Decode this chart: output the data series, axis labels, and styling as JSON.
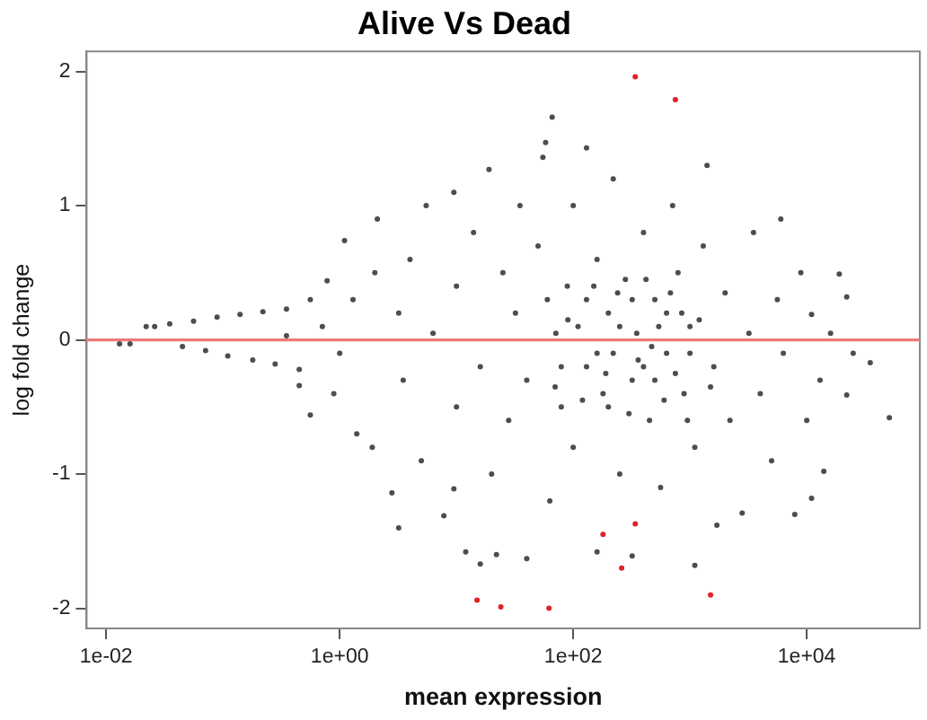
{
  "chart_data": {
    "type": "scatter",
    "title": "Alive Vs Dead",
    "xlabel": "mean expression",
    "ylabel": "log fold change",
    "log": "x",
    "marker": "circle",
    "xlim": [
      0.0068,
      93000
    ],
    "xticks": [
      {
        "value": 0.01,
        "label": "1e-02"
      },
      {
        "value": 1,
        "label": "1e+00"
      },
      {
        "value": 100,
        "label": "1e+02"
      },
      {
        "value": 10000,
        "label": "1e+04"
      }
    ],
    "ylim": [
      -2.15,
      2.15
    ],
    "yticks": [
      -2,
      -1,
      0,
      1,
      2
    ],
    "ref_lines": [
      {
        "axis": "y",
        "value": 0,
        "color": "#f07878"
      }
    ],
    "series": [
      {
        "color": "#4d4d4d",
        "x": [
          0.013,
          0.016,
          0.022,
          0.026,
          0.035,
          0.045,
          0.056,
          0.071,
          0.089,
          0.11,
          0.14,
          0.18,
          0.22,
          0.28,
          0.35,
          0.35,
          0.45,
          0.45,
          0.56,
          0.56,
          0.71,
          0.78,
          0.89,
          1.1,
          1,
          1.3,
          1.4,
          1.9,
          2,
          2.1,
          2.8,
          3.2,
          3.2,
          3.5,
          4,
          5,
          5.5,
          6.3,
          7.8,
          9.5,
          9.5,
          10,
          10,
          12,
          14,
          16,
          16,
          19,
          20,
          22,
          25,
          28,
          32,
          35,
          40,
          40,
          50,
          55,
          58,
          63,
          66,
          71,
          79,
          89,
          100,
          100,
          110,
          130,
          130,
          160,
          160,
          180,
          200,
          220,
          220,
          250,
          280,
          320,
          320,
          350,
          400,
          450,
          500,
          560,
          630,
          710,
          790,
          890,
          1000,
          1100,
          1100,
          1300,
          1400,
          1600,
          1700,
          2000,
          2200,
          2800,
          3200,
          3500,
          4000,
          5000,
          5600,
          6000,
          6300,
          7900,
          8900,
          10000,
          11000,
          11000,
          13000,
          14000,
          16000,
          19000,
          22000,
          22000,
          25000,
          35000,
          51000,
          160,
          250,
          400,
          320,
          200,
          500,
          630,
          130,
          79,
          1000,
          70,
          90,
          120,
          150,
          190,
          240,
          300,
          360,
          420,
          470,
          540,
          600,
          680,
          750,
          850,
          950,
          1200,
          1500,
          60
        ],
        "values": [
          -0.03,
          -0.03,
          0.1,
          0.1,
          0.12,
          -0.05,
          0.14,
          -0.08,
          0.17,
          -0.12,
          0.19,
          -0.15,
          0.21,
          -0.18,
          0.23,
          0.03,
          -0.22,
          -0.34,
          0.3,
          -0.56,
          0.1,
          0.44,
          -0.4,
          0.74,
          -0.1,
          0.3,
          -0.7,
          -0.8,
          0.5,
          0.9,
          -1.14,
          -1.4,
          0.2,
          -0.3,
          0.6,
          -0.9,
          1,
          0.05,
          -1.31,
          -1.11,
          1.1,
          0.4,
          -0.5,
          -1.58,
          0.8,
          -1.67,
          -0.2,
          1.27,
          -1,
          -1.6,
          0.5,
          -0.6,
          0.2,
          1,
          -1.63,
          -0.3,
          0.7,
          1.36,
          1.47,
          -1.2,
          1.66,
          0.05,
          -0.5,
          0.4,
          -0.8,
          1,
          0.1,
          1.43,
          -0.2,
          -1.58,
          0.6,
          -0.4,
          0.2,
          -0.1,
          1.2,
          -1,
          0.45,
          -1.61,
          -0.3,
          0.05,
          0.8,
          -0.6,
          0.3,
          -1.1,
          -0.1,
          1,
          0.5,
          -0.4,
          0.1,
          -1.68,
          -0.8,
          0.7,
          1.3,
          -0.2,
          -1.38,
          0.35,
          -0.6,
          -1.29,
          0.05,
          0.8,
          -0.4,
          -0.9,
          0.3,
          0.9,
          -0.1,
          -1.3,
          0.5,
          -0.6,
          0.19,
          -1.18,
          -0.3,
          -0.98,
          0.05,
          0.49,
          0.32,
          -0.41,
          -0.1,
          -0.17,
          -0.58,
          -0.1,
          0.1,
          -0.2,
          0.3,
          -0.5,
          -0.3,
          0.2,
          0.3,
          -0.2,
          -0.1,
          -0.35,
          0.15,
          -0.45,
          0.4,
          -0.25,
          0.35,
          -0.55,
          -0.15,
          0.45,
          -0.05,
          0.1,
          -0.45,
          0.35,
          -0.25,
          0.2,
          -0.6,
          0.15,
          -0.35,
          0.3
        ]
      },
      {
        "color": "#e32228",
        "x": [
          15,
          24,
          62,
          180,
          260,
          340,
          340,
          750,
          1500
        ],
        "values": [
          -1.94,
          -1.99,
          -2,
          -1.45,
          -1.7,
          -1.37,
          1.96,
          1.79,
          -1.9
        ]
      }
    ]
  }
}
